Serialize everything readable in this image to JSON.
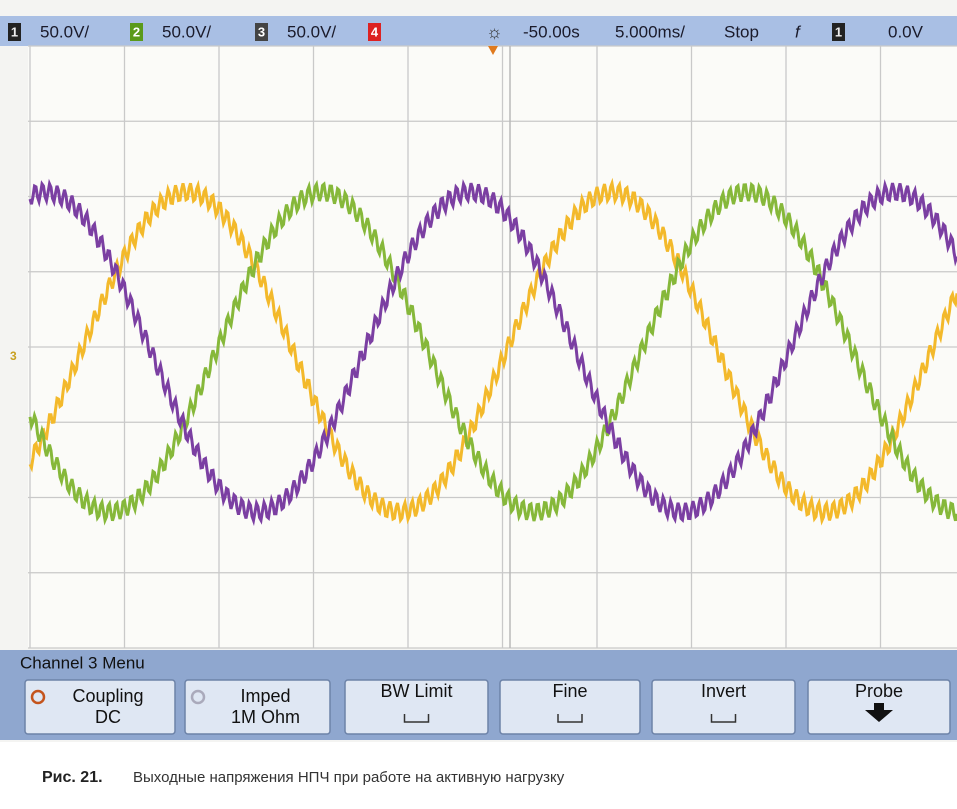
{
  "header": {
    "channels": [
      {
        "label": "1",
        "scale": "50.0V/"
      },
      {
        "label": "2",
        "scale": "50.0V/"
      },
      {
        "label": "3",
        "scale": "50.0V/"
      },
      {
        "label": "4"
      }
    ],
    "delay": "-50.00s",
    "timebase": "5.000ms/",
    "status": "Stop",
    "trigger_symbol": "f",
    "trigger_channel": "1",
    "trigger_level": "0.0V"
  },
  "ground_marker": "3",
  "menu": {
    "title": "Channel 3 Menu",
    "buttons": [
      {
        "label": "Coupling",
        "value": "DC"
      },
      {
        "label": "Imped",
        "value": "1M Ohm"
      },
      {
        "label": "BW Limit"
      },
      {
        "label": "Fine"
      },
      {
        "label": "Invert"
      },
      {
        "label": "Probe"
      }
    ]
  },
  "caption": {
    "prefix": "Рис. 21.",
    "text": "Выходные напряжения НПЧ при работе на активную нагрузку"
  }
}
